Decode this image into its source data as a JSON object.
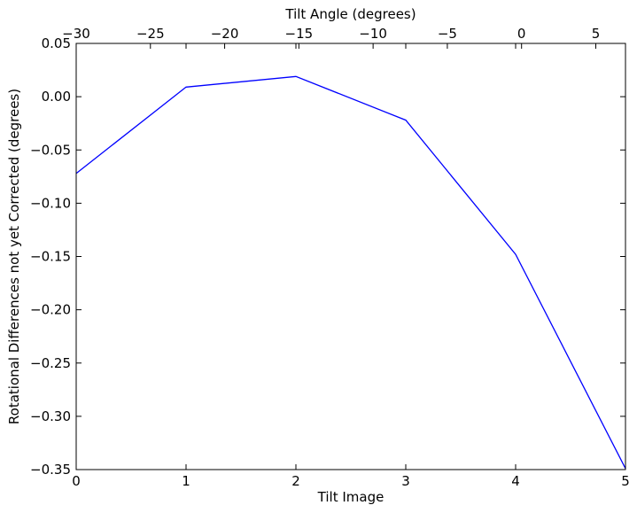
{
  "chart_data": {
    "type": "line",
    "title": "",
    "xlabel": "Tilt Image",
    "ylabel": "Rotational Differences not yet Corrected (degrees)",
    "x_top_label": "Tilt Angle (degrees)",
    "xlim": [
      0,
      5
    ],
    "ylim": [
      -0.35,
      0.05
    ],
    "x_top_lim": [
      -30,
      7
    ],
    "x_ticks": [
      "0",
      "1",
      "2",
      "3",
      "4",
      "5"
    ],
    "y_ticks": [
      "0.05",
      "0.00",
      "−0.05",
      "−0.10",
      "−0.15",
      "−0.20",
      "−0.25",
      "−0.30",
      "−0.35"
    ],
    "x_top_ticks": [
      "−30",
      "−25",
      "−20",
      "−15",
      "−10",
      "−5",
      "0",
      "5"
    ],
    "grid": false,
    "series": [
      {
        "x": [
          0,
          1,
          2,
          3,
          4,
          5
        ],
        "y": [
          -0.072,
          0.009,
          0.019,
          -0.022,
          -0.148,
          -0.349
        ],
        "color": "#0000ff"
      }
    ]
  }
}
